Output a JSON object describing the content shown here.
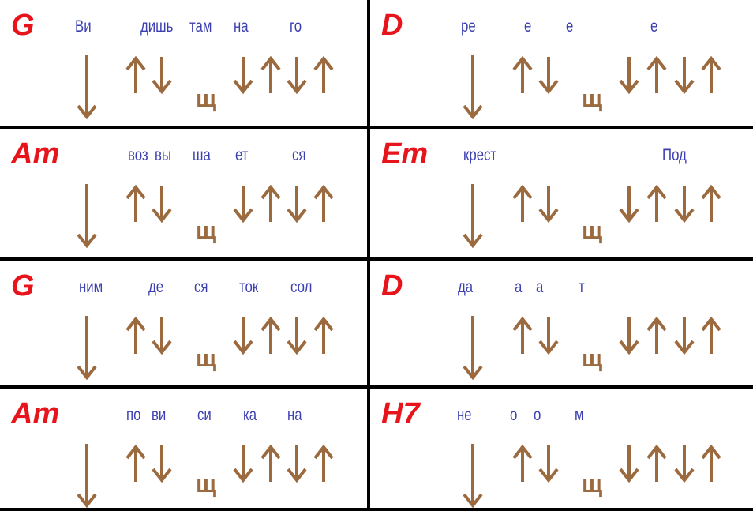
{
  "colors": {
    "chord": "#e8141c",
    "syllable": "#3b3fb0",
    "arrow": "#9b6a3f",
    "lines": "#000000"
  },
  "mute_symbol": "щ",
  "strum_icons": {
    "down": "arrow-down-icon",
    "up": "arrow-up-icon"
  },
  "strum_pattern": [
    "down",
    "up",
    "down",
    "mute",
    "down",
    "up",
    "down",
    "up"
  ],
  "cells": [
    {
      "chord": "G",
      "syllables": [
        "Ви",
        "дишь",
        "там",
        "на",
        "го"
      ]
    },
    {
      "chord": "D",
      "syllables": [
        "ре",
        "е",
        "е",
        "е"
      ]
    },
    {
      "chord": "Am",
      "syllables": [
        "воз",
        "вы",
        "ша",
        "ет",
        "ся"
      ]
    },
    {
      "chord": "Em",
      "syllables": [
        "крест",
        "Под"
      ]
    },
    {
      "chord": "G",
      "syllables": [
        "ним",
        "де",
        "ся",
        "ток",
        "сол"
      ]
    },
    {
      "chord": "D",
      "syllables": [
        "да",
        "а",
        "а",
        "т"
      ]
    },
    {
      "chord": "Am",
      "syllables": [
        "по",
        "ви",
        "си",
        "ка",
        "на"
      ]
    },
    {
      "chord": "H7",
      "syllables": [
        "не",
        "о",
        "о",
        "м"
      ]
    }
  ]
}
